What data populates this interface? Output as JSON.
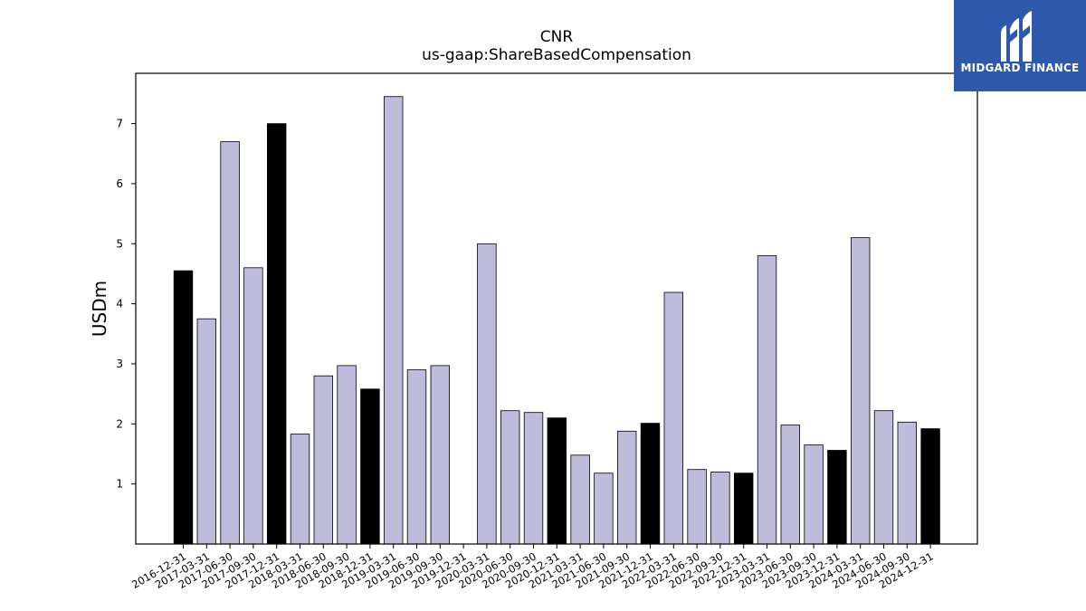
{
  "brand": {
    "name": "MIDGARD FINANCE",
    "logo_icon": "midgard-m-logo-icon",
    "color": "#2e59ab"
  },
  "chart_data": {
    "type": "bar",
    "title": "CNR",
    "subtitle": "us-gaap:ShareBasedCompensation",
    "xlabel": "",
    "ylabel": "USDm",
    "ylim": [
      0,
      7.85
    ],
    "yticks": [
      1,
      2,
      3,
      4,
      5,
      6,
      7
    ],
    "grid": false,
    "colors": {
      "quarter": "#bfbbdb",
      "year_end": "#000000",
      "edge": "#000000"
    },
    "categories": [
      "2016-12-31",
      "2017-03-31",
      "2017-06-30",
      "2017-09-30",
      "2017-12-31",
      "2018-03-31",
      "2018-06-30",
      "2018-09-30",
      "2018-12-31",
      "2019-03-31",
      "2019-06-30",
      "2019-09-30",
      "2019-12-31",
      "2020-03-31",
      "2020-06-30",
      "2020-09-30",
      "2020-12-31",
      "2021-03-31",
      "2021-06-30",
      "2021-09-30",
      "2021-12-31",
      "2022-03-31",
      "2022-06-30",
      "2022-09-30",
      "2022-12-31",
      "2023-03-31",
      "2023-06-30",
      "2023-09-30",
      "2023-12-31",
      "2024-03-31",
      "2024-06-30",
      "2024-09-30",
      "2024-12-31"
    ],
    "values": [
      4.55,
      3.75,
      6.7,
      4.6,
      7.0,
      1.83,
      2.8,
      2.97,
      2.58,
      7.45,
      2.9,
      2.97,
      0,
      5.0,
      2.22,
      2.19,
      2.1,
      1.48,
      1.18,
      1.88,
      2.01,
      4.19,
      1.24,
      1.2,
      1.18,
      4.8,
      1.98,
      1.65,
      1.56,
      5.1,
      2.22,
      2.03,
      1.92
    ],
    "year_end": [
      true,
      false,
      false,
      false,
      true,
      false,
      false,
      false,
      true,
      false,
      false,
      false,
      true,
      false,
      false,
      false,
      true,
      false,
      false,
      false,
      true,
      false,
      false,
      false,
      true,
      false,
      false,
      false,
      true,
      false,
      false,
      false,
      true
    ]
  }
}
